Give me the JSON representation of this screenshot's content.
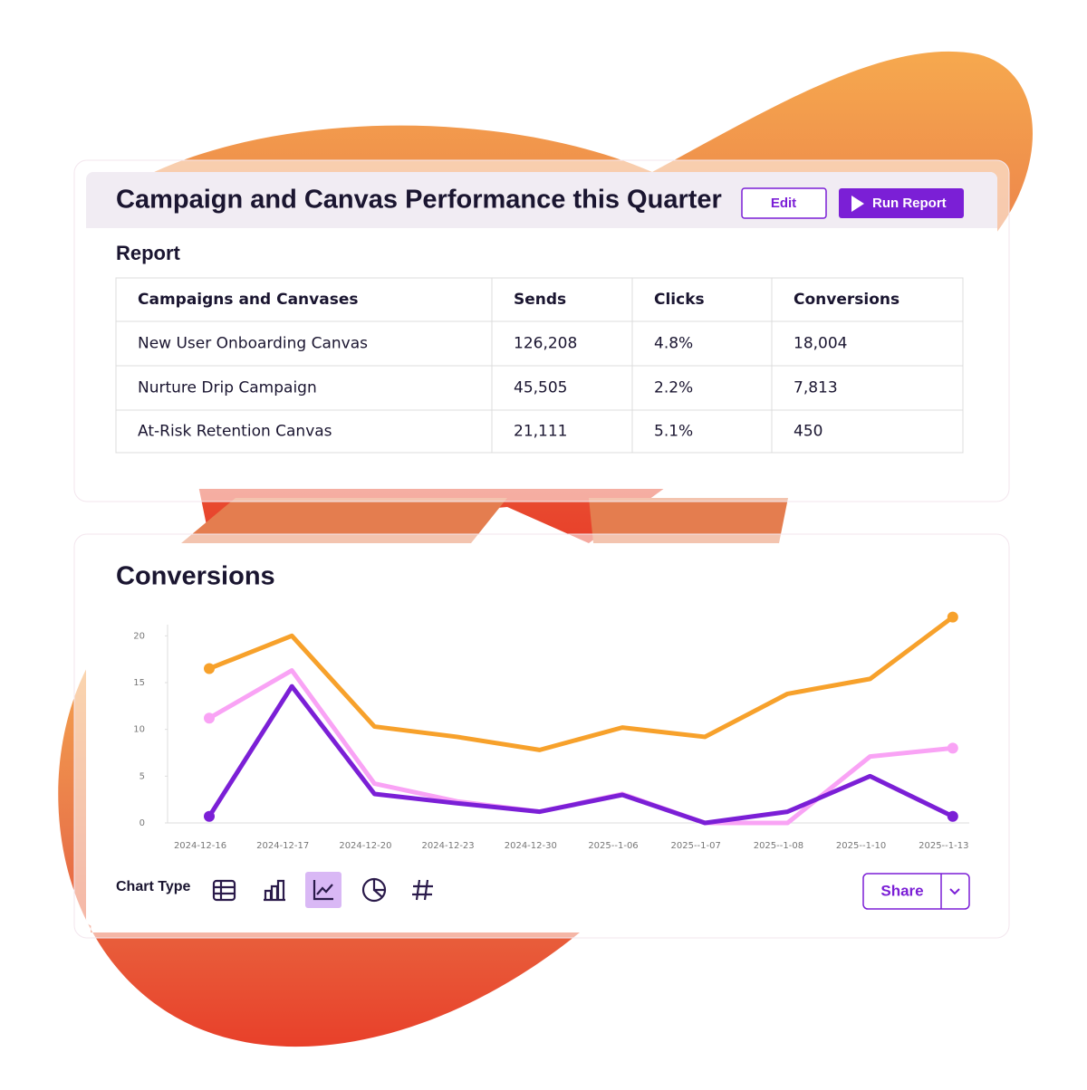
{
  "report": {
    "title": "Campaign and Canvas Performance this Quarter",
    "edit": "Edit",
    "run_report": "Run Report",
    "heading": "Report",
    "table": {
      "header": [
        "Campaigns and Canvases",
        "Sends",
        "Clicks",
        "Conversions"
      ],
      "rows": [
        [
          "New User Onboarding Canvas",
          "126,208",
          "4.8%",
          "18,004"
        ],
        [
          "Nurture Drip Campaign",
          "45,505",
          "2.2%",
          "7,813"
        ],
        [
          "At-Risk Retention Canvas",
          "21,111",
          "5.1%",
          "450"
        ]
      ]
    }
  },
  "chart_data": {
    "type": "line",
    "title": "Conversions",
    "categories": [
      "2024-12-16",
      "2024-12-17",
      "2024-12-20",
      "2024-12-23",
      "2024-12-30",
      "2025--1-06",
      "2025--1-07",
      "2025--1-08",
      "2025--1-10",
      "2025--1-13"
    ],
    "series": [
      {
        "color": "#f7a12b",
        "values": [
          16.5,
          20,
          10.3,
          9.2,
          7.8,
          10.2,
          9.2,
          13.8,
          15.4,
          22
        ]
      },
      {
        "color": "#f9a3f5",
        "values": [
          11.2,
          16.3,
          4.2,
          2.3,
          1.2,
          3.1,
          0,
          0,
          7.1,
          8
        ]
      },
      {
        "color": "#7b1fd6",
        "values": [
          0.7,
          14.6,
          3.1,
          2.1,
          1.2,
          3,
          0,
          1.2,
          5,
          0.7
        ]
      }
    ],
    "ylim": [
      0,
      21
    ],
    "yticks": [
      0,
      5,
      10,
      15,
      20
    ]
  },
  "toolbar": {
    "chart_type": "Chart Type",
    "share": "Share"
  }
}
